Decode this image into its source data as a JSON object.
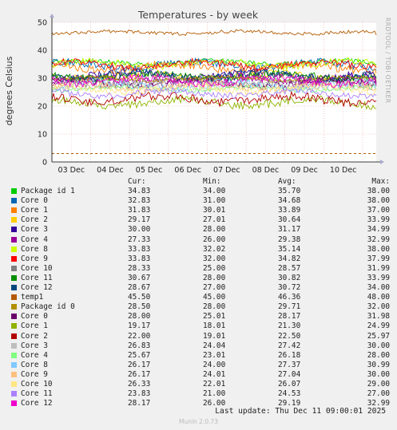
{
  "chart_data": {
    "type": "line",
    "title": "Temperatures - by week",
    "ylabel": "degrees Celsius",
    "xlabel": "",
    "ylim": [
      0,
      50
    ],
    "yticks": [
      0,
      10,
      20,
      30,
      40,
      50
    ],
    "x_tick_labels": [
      "03 Dec",
      "04 Dec",
      "05 Dec",
      "06 Dec",
      "07 Dec",
      "08 Dec",
      "09 Dec",
      "10 Dec"
    ],
    "grid": true,
    "legend_position": "bottom",
    "side_label": "RRDTOOL / TOBI OETIKER",
    "columns": {
      "cur": "Cur:",
      "min": "Min:",
      "avg": "Avg:",
      "max": "Max:"
    },
    "series": [
      {
        "name": "Package id 1",
        "color": "#00cc00",
        "cur": "34.83",
        "min": "34.00",
        "avg": "35.70",
        "max": "38.00"
      },
      {
        "name": "Core 0",
        "color": "#0066b3",
        "cur": "32.83",
        "min": "31.00",
        "avg": "34.68",
        "max": "38.00"
      },
      {
        "name": "Core 1",
        "color": "#ff8000",
        "cur": "31.83",
        "min": "30.01",
        "avg": "33.89",
        "max": "37.00"
      },
      {
        "name": "Core 2",
        "color": "#ffcc00",
        "cur": "29.17",
        "min": "27.01",
        "avg": "30.64",
        "max": "33.99"
      },
      {
        "name": "Core 3",
        "color": "#330099",
        "cur": "30.00",
        "min": "28.00",
        "avg": "31.17",
        "max": "34.99"
      },
      {
        "name": "Core 4",
        "color": "#990099",
        "cur": "27.33",
        "min": "26.00",
        "avg": "29.38",
        "max": "32.99"
      },
      {
        "name": "Core 8",
        "color": "#ccff00",
        "cur": "33.83",
        "min": "32.02",
        "avg": "35.14",
        "max": "38.00"
      },
      {
        "name": "Core 9",
        "color": "#ff0000",
        "cur": "33.83",
        "min": "32.00",
        "avg": "34.82",
        "max": "37.99"
      },
      {
        "name": "Core 10",
        "color": "#808080",
        "cur": "28.33",
        "min": "25.00",
        "avg": "28.57",
        "max": "31.99"
      },
      {
        "name": "Core 11",
        "color": "#008f00",
        "cur": "30.67",
        "min": "28.00",
        "avg": "30.82",
        "max": "33.99"
      },
      {
        "name": "Core 12",
        "color": "#00487d",
        "cur": "28.67",
        "min": "27.00",
        "avg": "30.72",
        "max": "34.00"
      },
      {
        "name": "temp1",
        "color": "#b35a00",
        "cur": "45.50",
        "min": "45.00",
        "avg": "46.36",
        "max": "48.00"
      },
      {
        "name": "Package id 0",
        "color": "#b38f00",
        "cur": "28.50",
        "min": "28.00",
        "avg": "29.71",
        "max": "32.00"
      },
      {
        "name": "Core 0",
        "color": "#6b006b",
        "cur": "28.00",
        "min": "25.01",
        "avg": "28.17",
        "max": "31.98"
      },
      {
        "name": "Core 1",
        "color": "#8fb300",
        "cur": "19.17",
        "min": "18.01",
        "avg": "21.30",
        "max": "24.99"
      },
      {
        "name": "Core 2",
        "color": "#b30000",
        "cur": "22.00",
        "min": "19.01",
        "avg": "22.50",
        "max": "25.97"
      },
      {
        "name": "Core 3",
        "color": "#bebebe",
        "cur": "26.83",
        "min": "24.04",
        "avg": "27.42",
        "max": "30.00"
      },
      {
        "name": "Core 4",
        "color": "#80ff80",
        "cur": "25.67",
        "min": "23.01",
        "avg": "26.18",
        "max": "28.00"
      },
      {
        "name": "Core 8",
        "color": "#80c9ff",
        "cur": "26.17",
        "min": "24.00",
        "avg": "27.37",
        "max": "30.99"
      },
      {
        "name": "Core 9",
        "color": "#ffc080",
        "cur": "26.17",
        "min": "24.01",
        "avg": "27.04",
        "max": "30.00"
      },
      {
        "name": "Core 10",
        "color": "#ffe680",
        "cur": "26.33",
        "min": "22.01",
        "avg": "26.07",
        "max": "29.00"
      },
      {
        "name": "Core 11",
        "color": "#aa80ff",
        "cur": "23.83",
        "min": "21.00",
        "avg": "24.53",
        "max": "27.00"
      },
      {
        "name": "Core 12",
        "color": "#ee00cc",
        "cur": "28.17",
        "min": "26.00",
        "avg": "29.19",
        "max": "32.99"
      }
    ],
    "warning_line": {
      "value": 3,
      "color": "#b35a00"
    }
  },
  "footer": {
    "last_update": "Last update: Thu Dec 11 09:00:01 2025",
    "generator": "Munin 2.0.73"
  }
}
